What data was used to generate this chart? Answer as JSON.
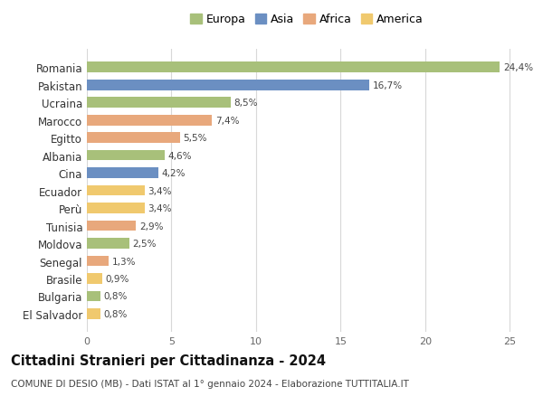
{
  "categories": [
    "El Salvador",
    "Bulgaria",
    "Brasile",
    "Senegal",
    "Moldova",
    "Tunisia",
    "Perù",
    "Ecuador",
    "Cina",
    "Albania",
    "Egitto",
    "Marocco",
    "Ucraina",
    "Pakistan",
    "Romania"
  ],
  "values": [
    0.8,
    0.8,
    0.9,
    1.3,
    2.5,
    2.9,
    3.4,
    3.4,
    4.2,
    4.6,
    5.5,
    7.4,
    8.5,
    16.7,
    24.4
  ],
  "labels": [
    "0,8%",
    "0,8%",
    "0,9%",
    "1,3%",
    "2,5%",
    "2,9%",
    "3,4%",
    "3,4%",
    "4,2%",
    "4,6%",
    "5,5%",
    "7,4%",
    "8,5%",
    "16,7%",
    "24,4%"
  ],
  "continents": [
    "America",
    "Europa",
    "America",
    "Africa",
    "Europa",
    "Africa",
    "America",
    "America",
    "Asia",
    "Europa",
    "Africa",
    "Africa",
    "Europa",
    "Asia",
    "Europa"
  ],
  "continent_colors": {
    "Europa": "#a8c07a",
    "Asia": "#6b8fc2",
    "Africa": "#e8a87c",
    "America": "#f0c96e"
  },
  "legend_order": [
    "Europa",
    "Asia",
    "Africa",
    "America"
  ],
  "xlim": [
    0,
    26
  ],
  "xticks": [
    0,
    5,
    10,
    15,
    20,
    25
  ],
  "title": "Cittadini Stranieri per Cittadinanza - 2024",
  "subtitle": "COMUNE DI DESIO (MB) - Dati ISTAT al 1° gennaio 2024 - Elaborazione TUTTITALIA.IT",
  "background_color": "#ffffff",
  "grid_color": "#d8d8d8",
  "bar_height": 0.6,
  "label_fontsize": 7.5,
  "ytick_fontsize": 8.5,
  "xtick_fontsize": 8.0,
  "title_fontsize": 10.5,
  "subtitle_fontsize": 7.5,
  "legend_fontsize": 9.0
}
